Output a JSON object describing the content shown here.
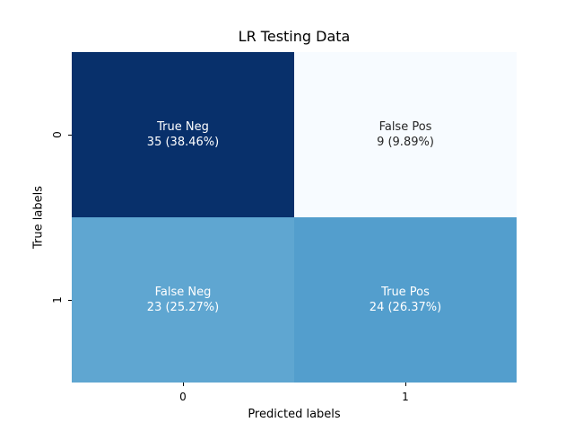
{
  "chart_data": {
    "type": "heatmap",
    "title": "LR Testing Data",
    "xlabel": "Predicted labels",
    "ylabel": "True labels",
    "x_ticks": [
      "0",
      "1"
    ],
    "y_ticks": [
      "0",
      "1"
    ],
    "colormap": "Blues",
    "colorbar": false,
    "cells": [
      {
        "row": 0,
        "col": 0,
        "name": "True Neg",
        "text": "35 (38.46%)",
        "value": 35,
        "percent": 38.46,
        "color": "#08306b",
        "text_color": "#ffffff"
      },
      {
        "row": 0,
        "col": 1,
        "name": "False Pos",
        "text": "9 (9.89%)",
        "value": 9,
        "percent": 9.89,
        "color": "#f7fbff",
        "text_color": "#262626"
      },
      {
        "row": 1,
        "col": 0,
        "name": "False Neg",
        "text": "23 (25.27%)",
        "value": 23,
        "percent": 25.27,
        "color": "#5fa6d1",
        "text_color": "#ffffff"
      },
      {
        "row": 1,
        "col": 1,
        "name": "True Pos",
        "text": "24 (26.37%)",
        "value": 24,
        "percent": 26.37,
        "color": "#539ecd",
        "text_color": "#ffffff"
      }
    ]
  }
}
